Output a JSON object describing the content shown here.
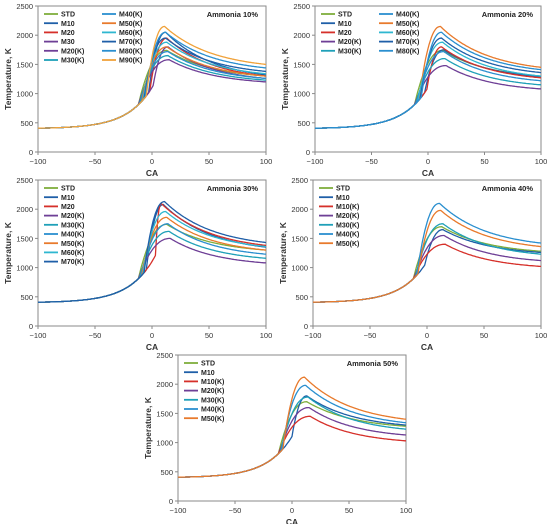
{
  "colors": {
    "STD": "#7fae3c",
    "M10": "#1f5fa8",
    "M20": "#d6302a",
    "M20(K)": "#6e3f96",
    "M30": "#6e3f96",
    "M30(K)": "#1fa0b8",
    "M40(K)": "#2a8fcf",
    "M40": "#e87a2c",
    "M50(K)": "#e87a2c",
    "M50": "#9ab1d8",
    "M60(K)": "#2fb7d0",
    "M60": "#f08f8f",
    "M70(K)": "#1f5fa8",
    "M70": "#b8d88a",
    "M80(K)": "#2a8fcf",
    "M80": "#b29cc9",
    "M90(K)": "#f0a23a",
    "M10(K)": "#d6302a"
  },
  "chart_data": [
    {
      "type": "line",
      "title": "Ammonia 10%",
      "xlabel": "CA",
      "ylabel": "Temperature, K",
      "xlim": [
        -100,
        100
      ],
      "ylim": [
        0,
        2500
      ],
      "xticks": [
        "−100",
        "−50",
        "0",
        "50",
        "100"
      ],
      "yticks": [
        "0",
        "500",
        "1000",
        "1500",
        "2000",
        "2500"
      ],
      "legend": "top-left, two columns",
      "series": [
        {
          "name": "STD",
          "ign": -12,
          "peak": 1740,
          "pkx": 13,
          "end": 1300
        },
        {
          "name": "M10",
          "ign": -3,
          "peak": 2050,
          "pkx": 12,
          "end": 1320
        },
        {
          "name": "M20",
          "ign": -2,
          "peak": 1950,
          "pkx": 13,
          "end": 1300
        },
        {
          "name": "M30",
          "ign": 1,
          "peak": 1800,
          "pkx": 14,
          "end": 1260
        },
        {
          "name": "M20(K)",
          "ign": -12,
          "peak": 1580,
          "pkx": 15,
          "end": 1200
        },
        {
          "name": "M30(K)",
          "ign": -11,
          "peak": 1650,
          "pkx": 14,
          "end": 1230
        },
        {
          "name": "M40(K)",
          "ign": -10,
          "peak": 1720,
          "pkx": 14,
          "end": 1260
        },
        {
          "name": "M50(K)",
          "ign": -9,
          "peak": 1800,
          "pkx": 13,
          "end": 1300
        },
        {
          "name": "M60(K)",
          "ign": -8,
          "peak": 1880,
          "pkx": 13,
          "end": 1340
        },
        {
          "name": "M70(K)",
          "ign": -7,
          "peak": 1950,
          "pkx": 12,
          "end": 1380
        },
        {
          "name": "M80(K)",
          "ign": -6,
          "peak": 2050,
          "pkx": 12,
          "end": 1440
        },
        {
          "name": "M90(K)",
          "ign": -5,
          "peak": 2150,
          "pkx": 11,
          "end": 1500
        }
      ]
    },
    {
      "type": "line",
      "title": "Ammonia 20%",
      "xlabel": "CA",
      "ylabel": "Temperature, K",
      "xlim": [
        -100,
        100
      ],
      "ylim": [
        0,
        2500
      ],
      "xticks": [
        "−100",
        "−50",
        "0",
        "50",
        "100"
      ],
      "yticks": [
        "0",
        "500",
        "1000",
        "1500",
        "2000",
        "2500"
      ],
      "legend": "top-left, two columns",
      "series": [
        {
          "name": "STD",
          "ign": -12,
          "peak": 1740,
          "pkx": 13,
          "end": 1300
        },
        {
          "name": "M10",
          "ign": -3,
          "peak": 1750,
          "pkx": 14,
          "end": 1290
        },
        {
          "name": "M20",
          "ign": -1,
          "peak": 1800,
          "pkx": 12,
          "end": 1270
        },
        {
          "name": "M20(K)",
          "ign": -12,
          "peak": 1480,
          "pkx": 16,
          "end": 1080
        },
        {
          "name": "M30(K)",
          "ign": -11,
          "peak": 1600,
          "pkx": 15,
          "end": 1150
        },
        {
          "name": "M40(K)",
          "ign": -10,
          "peak": 1720,
          "pkx": 14,
          "end": 1220
        },
        {
          "name": "M50(K)",
          "ign": -8,
          "peak": 2150,
          "pkx": 11,
          "end": 1450
        },
        {
          "name": "M60(K)",
          "ign": -9,
          "peak": 1880,
          "pkx": 13,
          "end": 1300
        },
        {
          "name": "M70(K)",
          "ign": -7,
          "peak": 1950,
          "pkx": 12,
          "end": 1360
        },
        {
          "name": "M80(K)",
          "ign": -6,
          "peak": 2050,
          "pkx": 12,
          "end": 1410
        }
      ]
    },
    {
      "type": "line",
      "title": "Ammonia 30%",
      "xlabel": "CA",
      "ylabel": "Temperature, K",
      "xlim": [
        -100,
        100
      ],
      "ylim": [
        0,
        2500
      ],
      "xticks": [
        "−100",
        "−50",
        "0",
        "50",
        "100"
      ],
      "yticks": [
        "0",
        "500",
        "1000",
        "1500",
        "2000",
        "2500"
      ],
      "legend": "top-left, one column",
      "series": [
        {
          "name": "STD",
          "ign": -12,
          "peak": 1740,
          "pkx": 13,
          "end": 1300
        },
        {
          "name": "M10",
          "ign": -5,
          "peak": 2080,
          "pkx": 10,
          "end": 1350
        },
        {
          "name": "M20",
          "ign": 3,
          "peak": 2100,
          "pkx": 8,
          "end": 1380
        },
        {
          "name": "M20(K)",
          "ign": -12,
          "peak": 1500,
          "pkx": 16,
          "end": 1080
        },
        {
          "name": "M30(K)",
          "ign": -11,
          "peak": 1620,
          "pkx": 15,
          "end": 1160
        },
        {
          "name": "M40(K)",
          "ign": -10,
          "peak": 1750,
          "pkx": 14,
          "end": 1230
        },
        {
          "name": "M50(K)",
          "ign": -9,
          "peak": 1860,
          "pkx": 13,
          "end": 1300
        },
        {
          "name": "M60(K)",
          "ign": -8,
          "peak": 1960,
          "pkx": 12,
          "end": 1360
        },
        {
          "name": "M70(K)",
          "ign": -7,
          "peak": 2130,
          "pkx": 11,
          "end": 1430
        }
      ]
    },
    {
      "type": "line",
      "title": "Ammonia 40%",
      "xlabel": "CA",
      "ylabel": "Temperature, K",
      "xlim": [
        -100,
        100
      ],
      "ylim": [
        0,
        2500
      ],
      "xticks": [
        "−100",
        "−50",
        "0",
        "50",
        "100"
      ],
      "yticks": [
        "0",
        "500",
        "1000",
        "1500",
        "2000",
        "2500"
      ],
      "legend": "top-left, one column",
      "series": [
        {
          "name": "STD",
          "ign": -12,
          "peak": 1700,
          "pkx": 13,
          "end": 1280
        },
        {
          "name": "M10",
          "ign": -2,
          "peak": 1650,
          "pkx": 14,
          "end": 1260
        },
        {
          "name": "M10(K)",
          "ign": -12,
          "peak": 1400,
          "pkx": 16,
          "end": 1020
        },
        {
          "name": "M20(K)",
          "ign": -11,
          "peak": 1550,
          "pkx": 15,
          "end": 1120
        },
        {
          "name": "M30(K)",
          "ign": -10,
          "peak": 1750,
          "pkx": 14,
          "end": 1230
        },
        {
          "name": "M40(K)",
          "ign": -9,
          "peak": 2100,
          "pkx": 11,
          "end": 1420
        },
        {
          "name": "M50(K)",
          "ign": -8,
          "peak": 1980,
          "pkx": 12,
          "end": 1360
        }
      ]
    },
    {
      "type": "line",
      "title": "Ammonia 50%",
      "xlabel": "CA",
      "ylabel": "Temperature, K",
      "xlim": [
        -100,
        100
      ],
      "ylim": [
        0,
        2500
      ],
      "xticks": [
        "−100",
        "−50",
        "0",
        "50",
        "100"
      ],
      "yticks": [
        "0",
        "500",
        "1000",
        "1500",
        "2000",
        "2500"
      ],
      "legend": "top-left, one column",
      "series": [
        {
          "name": "STD",
          "ign": -12,
          "peak": 1700,
          "pkx": 13,
          "end": 1280
        },
        {
          "name": "M10",
          "ign": 0,
          "peak": 1800,
          "pkx": 13,
          "end": 1300
        },
        {
          "name": "M10(K)",
          "ign": -12,
          "peak": 1450,
          "pkx": 16,
          "end": 1030
        },
        {
          "name": "M20(K)",
          "ign": -11,
          "peak": 1600,
          "pkx": 15,
          "end": 1130
        },
        {
          "name": "M30(K)",
          "ign": -10,
          "peak": 1780,
          "pkx": 14,
          "end": 1230
        },
        {
          "name": "M40(K)",
          "ign": -9,
          "peak": 1980,
          "pkx": 12,
          "end": 1340
        },
        {
          "name": "M50(K)",
          "ign": -8,
          "peak": 2120,
          "pkx": 11,
          "end": 1400
        }
      ]
    }
  ]
}
